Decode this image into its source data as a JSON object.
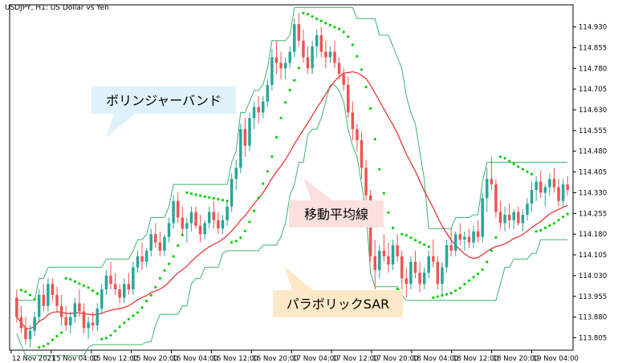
{
  "chart_title": "USDJPY, H1:  US Dollar vs Yen",
  "chart_data": {
    "type": "candlestick",
    "ylim": [
      113.76,
      115.01
    ],
    "y_ticks": [
      114.93,
      114.855,
      114.78,
      114.705,
      114.63,
      114.555,
      114.48,
      114.405,
      114.33,
      114.255,
      114.18,
      114.105,
      114.03,
      113.955,
      113.88,
      113.805
    ],
    "x_ticks": [
      "12 Nov 2021",
      "15 Nov 04:00",
      "15 Nov 12:00",
      "15 Nov 20:00",
      "16 Nov 04:00",
      "16 Nov 12:00",
      "16 Nov 20:00",
      "17 Nov 04:00",
      "17 Nov 12:00",
      "17 Nov 20:00",
      "18 Nov 04:00",
      "18 Nov 12:00",
      "18 Nov 20:00",
      "19 Nov 04:00"
    ],
    "bull_color": "#26a69a",
    "bear_color": "#ef5350",
    "candles": [
      [
        113.95,
        113.98,
        113.86,
        113.88
      ],
      [
        113.88,
        113.92,
        113.82,
        113.84
      ],
      [
        113.84,
        113.88,
        113.78,
        113.8
      ],
      [
        113.8,
        113.85,
        113.77,
        113.83
      ],
      [
        113.83,
        113.9,
        113.81,
        113.88
      ],
      [
        113.88,
        113.98,
        113.86,
        113.96
      ],
      [
        113.96,
        114.0,
        113.9,
        113.92
      ],
      [
        113.92,
        114.02,
        113.9,
        114.0
      ],
      [
        114.0,
        114.02,
        113.94,
        113.96
      ],
      [
        113.96,
        113.99,
        113.9,
        113.92
      ],
      [
        113.92,
        113.96,
        113.85,
        113.88
      ],
      [
        113.88,
        113.92,
        113.83,
        113.85
      ],
      [
        113.85,
        113.9,
        113.82,
        113.88
      ],
      [
        113.88,
        113.95,
        113.86,
        113.93
      ],
      [
        113.93,
        113.98,
        113.88,
        113.9
      ],
      [
        113.9,
        113.93,
        113.82,
        113.84
      ],
      [
        113.84,
        113.88,
        113.8,
        113.86
      ],
      [
        113.86,
        113.9,
        113.83,
        113.85
      ],
      [
        113.85,
        113.93,
        113.83,
        113.91
      ],
      [
        113.91,
        114.0,
        113.89,
        113.98
      ],
      [
        113.98,
        114.05,
        113.96,
        114.03
      ],
      [
        114.03,
        114.08,
        113.98,
        114.0
      ],
      [
        114.0,
        114.04,
        113.96,
        113.98
      ],
      [
        113.98,
        114.0,
        113.93,
        113.95
      ],
      [
        113.95,
        114.02,
        113.93,
        114.0
      ],
      [
        114.0,
        114.04,
        113.96,
        113.98
      ],
      [
        113.98,
        114.08,
        113.96,
        114.06
      ],
      [
        114.06,
        114.12,
        114.04,
        114.1
      ],
      [
        114.1,
        114.15,
        114.05,
        114.08
      ],
      [
        114.08,
        114.13,
        114.06,
        114.12
      ],
      [
        114.12,
        114.2,
        114.1,
        114.18
      ],
      [
        114.18,
        114.22,
        114.13,
        114.15
      ],
      [
        114.15,
        114.19,
        114.1,
        114.12
      ],
      [
        114.12,
        114.18,
        114.1,
        114.17
      ],
      [
        114.17,
        114.24,
        114.15,
        114.22
      ],
      [
        114.22,
        114.32,
        114.2,
        114.3
      ],
      [
        114.3,
        114.33,
        114.22,
        114.24
      ],
      [
        114.24,
        114.28,
        114.18,
        114.2
      ],
      [
        114.2,
        114.24,
        114.15,
        114.22
      ],
      [
        114.22,
        114.28,
        114.19,
        114.26
      ],
      [
        114.26,
        114.28,
        114.2,
        114.21
      ],
      [
        114.21,
        114.25,
        114.15,
        114.18
      ],
      [
        114.18,
        114.23,
        114.16,
        114.22
      ],
      [
        114.22,
        114.28,
        114.2,
        114.26
      ],
      [
        114.26,
        114.3,
        114.2,
        114.23
      ],
      [
        114.23,
        114.26,
        114.18,
        114.2
      ],
      [
        114.2,
        114.25,
        114.18,
        114.23
      ],
      [
        114.23,
        114.3,
        114.21,
        114.28
      ],
      [
        114.28,
        114.4,
        114.26,
        114.38
      ],
      [
        114.38,
        114.45,
        114.34,
        114.42
      ],
      [
        114.42,
        114.58,
        114.4,
        114.56
      ],
      [
        114.56,
        114.6,
        114.46,
        114.5
      ],
      [
        114.5,
        114.62,
        114.48,
        114.6
      ],
      [
        114.6,
        114.66,
        114.56,
        114.64
      ],
      [
        114.64,
        114.68,
        114.58,
        114.62
      ],
      [
        114.62,
        114.68,
        114.6,
        114.66
      ],
      [
        114.66,
        114.74,
        114.64,
        114.72
      ],
      [
        114.72,
        114.85,
        114.7,
        114.82
      ],
      [
        114.82,
        114.88,
        114.76,
        114.8
      ],
      [
        114.8,
        114.84,
        114.74,
        114.78
      ],
      [
        114.78,
        114.82,
        114.74,
        114.8
      ],
      [
        114.8,
        114.86,
        114.78,
        114.84
      ],
      [
        114.84,
        114.96,
        114.82,
        114.94
      ],
      [
        114.94,
        114.98,
        114.86,
        114.88
      ],
      [
        114.88,
        114.92,
        114.8,
        114.82
      ],
      [
        114.82,
        114.86,
        114.76,
        114.78
      ],
      [
        114.78,
        114.88,
        114.76,
        114.86
      ],
      [
        114.86,
        114.92,
        114.82,
        114.9
      ],
      [
        114.9,
        114.93,
        114.82,
        114.84
      ],
      [
        114.84,
        114.88,
        114.78,
        114.82
      ],
      [
        114.82,
        114.86,
        114.8,
        114.84
      ],
      [
        114.84,
        114.88,
        114.78,
        114.8
      ],
      [
        114.8,
        114.82,
        114.74,
        114.76
      ],
      [
        114.76,
        114.78,
        114.7,
        114.72
      ],
      [
        114.72,
        114.75,
        114.6,
        114.62
      ],
      [
        114.62,
        114.66,
        114.52,
        114.56
      ],
      [
        114.56,
        114.58,
        114.48,
        114.52
      ],
      [
        114.52,
        114.55,
        114.38,
        114.42
      ],
      [
        114.42,
        114.45,
        114.28,
        114.32
      ],
      [
        114.32,
        114.34,
        114.08,
        114.1
      ],
      [
        114.1,
        114.16,
        113.98,
        114.05
      ],
      [
        114.05,
        114.14,
        114.02,
        114.12
      ],
      [
        114.12,
        114.18,
        114.08,
        114.1
      ],
      [
        114.1,
        114.15,
        114.04,
        114.07
      ],
      [
        114.07,
        114.16,
        114.05,
        114.14
      ],
      [
        114.14,
        114.18,
        114.08,
        114.1
      ],
      [
        114.1,
        114.12,
        113.98,
        114.02
      ],
      [
        114.02,
        114.06,
        113.95,
        114.0
      ],
      [
        114.0,
        114.1,
        113.98,
        114.08
      ],
      [
        114.08,
        114.12,
        114.02,
        114.04
      ],
      [
        114.04,
        114.08,
        113.97,
        114.0
      ],
      [
        114.0,
        114.06,
        113.98,
        114.04
      ],
      [
        114.04,
        114.12,
        114.02,
        114.1
      ],
      [
        114.1,
        114.16,
        114.06,
        114.08
      ],
      [
        114.08,
        114.1,
        113.98,
        114.0
      ],
      [
        114.0,
        114.08,
        113.96,
        114.06
      ],
      [
        114.06,
        114.16,
        114.04,
        114.14
      ],
      [
        114.14,
        114.2,
        114.1,
        114.12
      ],
      [
        114.12,
        114.19,
        114.1,
        114.18
      ],
      [
        114.18,
        114.22,
        114.14,
        114.16
      ],
      [
        114.16,
        114.19,
        114.12,
        114.17
      ],
      [
        114.17,
        114.2,
        114.13,
        114.15
      ],
      [
        114.15,
        114.21,
        114.13,
        114.19
      ],
      [
        114.19,
        114.23,
        114.15,
        114.17
      ],
      [
        114.17,
        114.33,
        114.15,
        114.31
      ],
      [
        114.31,
        114.42,
        114.26,
        114.38
      ],
      [
        114.38,
        114.46,
        114.34,
        114.36
      ],
      [
        114.36,
        114.38,
        114.24,
        114.26
      ],
      [
        114.26,
        114.3,
        114.2,
        114.22
      ],
      [
        114.22,
        114.28,
        114.19,
        114.25
      ],
      [
        114.25,
        114.29,
        114.2,
        114.23
      ],
      [
        114.23,
        114.27,
        114.2,
        114.26
      ],
      [
        114.26,
        114.28,
        114.21,
        114.22
      ],
      [
        114.22,
        114.27,
        114.19,
        114.25
      ],
      [
        114.25,
        114.31,
        114.23,
        114.29
      ],
      [
        114.29,
        114.37,
        114.26,
        114.34
      ],
      [
        114.34,
        114.39,
        114.3,
        114.37
      ],
      [
        114.37,
        114.41,
        114.31,
        114.33
      ],
      [
        114.33,
        114.36,
        114.28,
        114.35
      ],
      [
        114.35,
        114.4,
        114.32,
        114.38
      ],
      [
        114.38,
        114.42,
        114.33,
        114.35
      ],
      [
        114.35,
        114.38,
        114.28,
        114.3
      ],
      [
        114.3,
        114.38,
        114.28,
        114.36
      ],
      [
        114.36,
        114.39,
        114.32,
        114.34
      ]
    ],
    "indicators": [
      {
        "name": "ボリンジャーバンド"
      },
      {
        "name": "移動平均線"
      },
      {
        "name": "パラボリックSAR"
      }
    ],
    "bollinger_color": "#3cb371",
    "ma_color": "#e8272a",
    "sar_color": "#00d000",
    "annotations": [
      {
        "text": "ボリンジャーバンド",
        "bg": "#dff2fb",
        "border": "#cfe9f6"
      },
      {
        "text": "移動平均線",
        "bg": "#fbe0de",
        "border": "#f3cfcc"
      },
      {
        "text": "パラボリックSAR",
        "bg": "#fde9c8",
        "border": "#f6ddb1"
      }
    ]
  }
}
